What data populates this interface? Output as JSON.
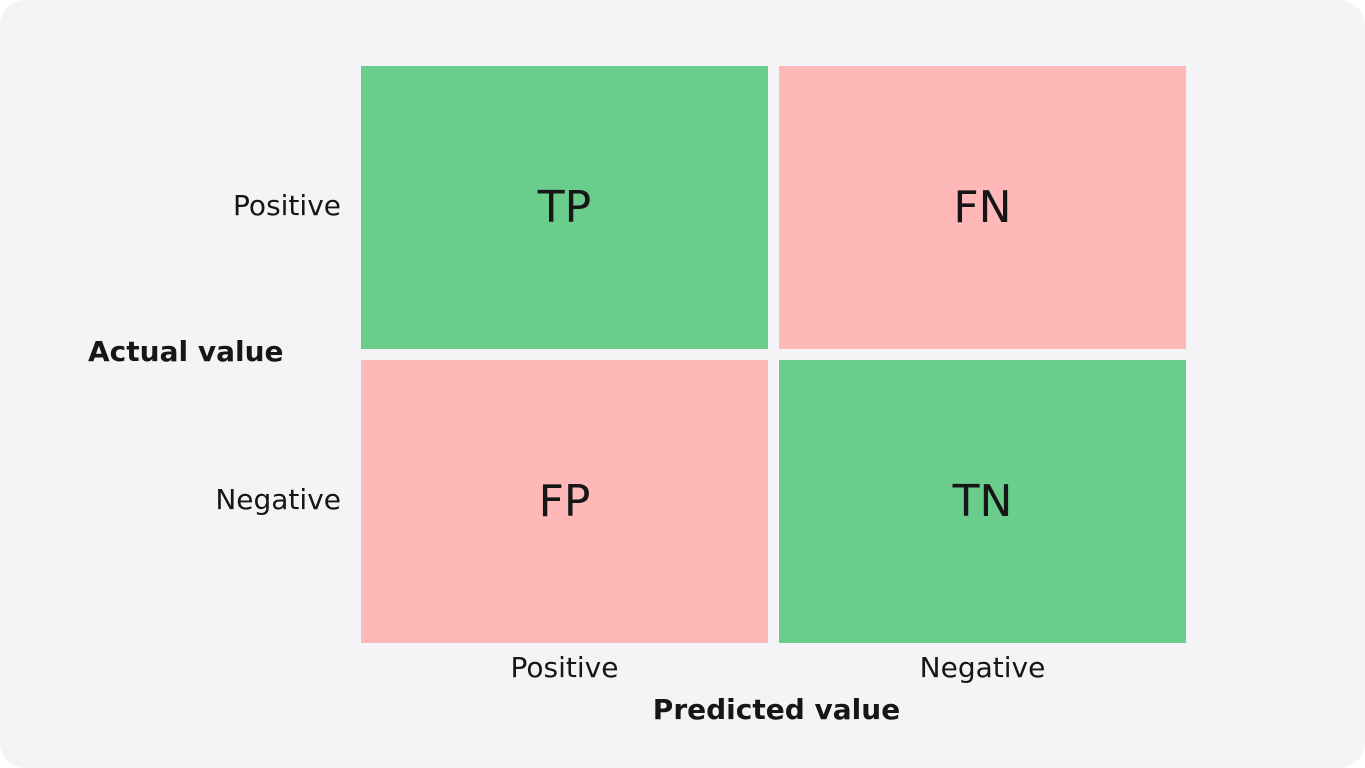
{
  "title_y": "Actual value",
  "title_x": "Predicted value",
  "row_labels": [
    "Positive",
    "Negative"
  ],
  "column_labels": [
    "Positive",
    "Negative"
  ],
  "cells": [
    [
      "TP",
      "FN"
    ],
    [
      "FP",
      "TN"
    ]
  ]
}
